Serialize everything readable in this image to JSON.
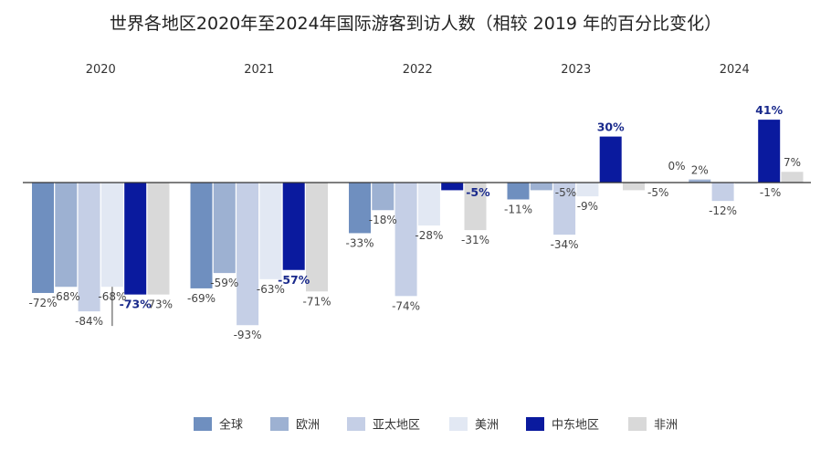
{
  "chart_data": {
    "type": "bar",
    "title": "世界各地区2020年至2024年国际游客到访人数（相较 2019 年的百分比变化）",
    "categories": [
      "2020",
      "2021",
      "2022",
      "2023",
      "2024"
    ],
    "series": [
      {
        "name": "全球",
        "values": [
          -72,
          -69,
          -33,
          -11,
          0
        ],
        "labels": [
          "-72%",
          "-69%",
          "-33%",
          "-11%",
          "0%"
        ]
      },
      {
        "name": "欧洲",
        "values": [
          -68,
          -59,
          -18,
          -5,
          2
        ],
        "labels": [
          "-68%",
          "-59%",
          "-18%",
          "-5%",
          "2%"
        ]
      },
      {
        "name": "亚太地区",
        "values": [
          -84,
          -93,
          -74,
          -34,
          -12
        ],
        "labels": [
          "-84%",
          "-93%",
          "-74%",
          "-34%",
          "-12%"
        ]
      },
      {
        "name": "美洲",
        "values": [
          -68,
          -63,
          -28,
          -9,
          -1
        ],
        "labels": [
          "-68%",
          "-63%",
          "-28%",
          "-9%",
          "-1%"
        ]
      },
      {
        "name": "中东地区",
        "values": [
          -73,
          -57,
          -5,
          30,
          41
        ],
        "labels": [
          "-73%",
          "-57%",
          "-5%",
          "30%",
          "41%"
        ]
      },
      {
        "name": "非洲",
        "values": [
          -73,
          -71,
          -31,
          -5,
          7
        ],
        "labels": [
          "-73%",
          "-71%",
          "-31%",
          "-5%",
          "7%"
        ]
      }
    ],
    "colors": [
      "#6f8fbf",
      "#9db1d2",
      "#c5cfe6",
      "#e2e8f3",
      "#0a1a9e",
      "#d9d9d9"
    ],
    "highlight_series": "中东地区",
    "ylim": [
      -100,
      50
    ],
    "grid": false,
    "legend_position": "bottom-center"
  }
}
